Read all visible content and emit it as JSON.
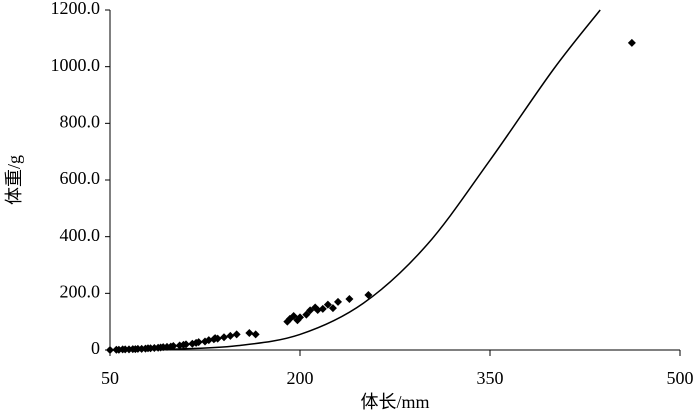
{
  "chart_data": {
    "type": "scatter",
    "xlabel": "体长/mm",
    "ylabel": "体重/g",
    "xlim": [
      50,
      500
    ],
    "xticks": [
      50,
      200,
      350,
      500
    ],
    "ylim": [
      0,
      1200
    ],
    "yticks": [
      0,
      {
        "value": 200,
        "label": "200.0"
      },
      {
        "value": 400,
        "label": "400.0"
      },
      {
        "value": 600,
        "label": "600.0"
      },
      {
        "value": 800,
        "label": "800.0"
      },
      {
        "value": 1000,
        "label": "1000.0"
      },
      {
        "value": 1200,
        "label": "1200.0"
      }
    ],
    "grid": false,
    "series": [
      {
        "type": "scatter",
        "color": "#000000",
        "x": [
          50,
          55,
          57,
          60,
          62,
          65,
          68,
          70,
          72,
          75,
          78,
          80,
          82,
          85,
          88,
          90,
          92,
          95,
          98,
          100,
          105,
          108,
          110,
          115,
          118,
          120,
          125,
          128,
          132,
          133,
          135,
          140,
          145,
          150,
          160,
          165,
          190,
          192,
          195,
          198,
          200,
          205,
          208,
          212,
          214,
          218,
          222,
          226,
          230,
          239,
          254,
          462
        ],
        "values": [
          0,
          1,
          1,
          2,
          2,
          2,
          3,
          3,
          4,
          4,
          5,
          6,
          6,
          7,
          8,
          9,
          10,
          11,
          12,
          14,
          16,
          18,
          20,
          22,
          25,
          28,
          30,
          35,
          38,
          42,
          40,
          45,
          50,
          55,
          60,
          55,
          100,
          110,
          120,
          105,
          115,
          125,
          140,
          150,
          141,
          145,
          160,
          148,
          170,
          180,
          194,
          1084
        ]
      },
      {
        "type": "line",
        "color": "#000000",
        "x": [
          50,
          100,
          150,
          200,
          250,
          300,
          350,
          400,
          437
        ],
        "values": [
          0,
          3,
          15,
          55,
          165,
          370,
          670,
          990,
          1200
        ]
      }
    ]
  }
}
